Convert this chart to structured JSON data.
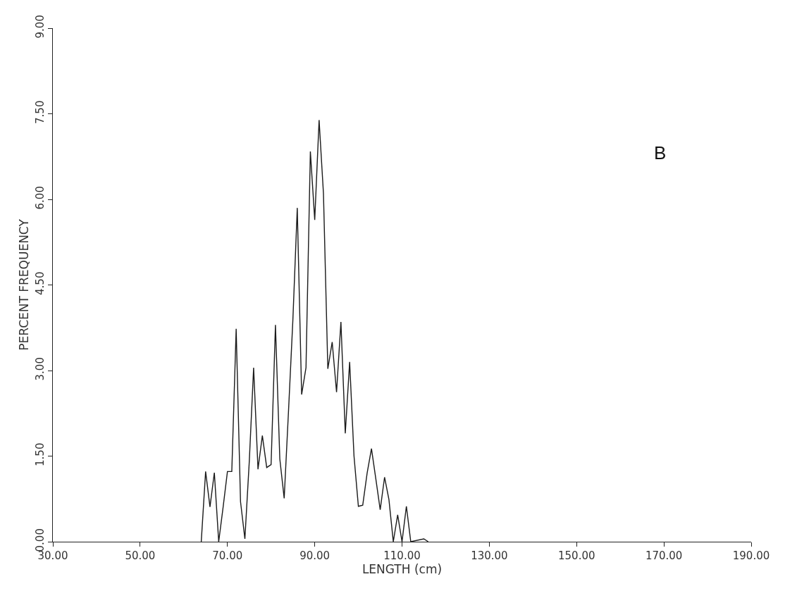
{
  "chart_data": {
    "type": "line",
    "xlabel": "LENGTH (cm)",
    "ylabel": "PERCENT FREQUENCY",
    "annotations": [
      "B"
    ],
    "x": [
      64,
      65,
      66,
      67,
      68,
      69,
      70,
      71,
      72,
      73,
      74,
      75,
      76,
      77,
      78,
      79,
      80,
      81,
      82,
      83,
      84,
      85,
      86,
      87,
      88,
      89,
      90,
      91,
      92,
      93,
      94,
      95,
      96,
      97,
      98,
      99,
      100,
      101,
      102,
      103,
      104,
      105,
      106,
      107,
      108,
      109,
      110,
      111,
      112,
      115,
      116
    ],
    "series": [
      {
        "color": "#1a1a1a",
        "values": [
          0,
          1.23,
          0.61,
          1.21,
          0,
          0.6,
          1.23,
          1.23,
          3.73,
          0.7,
          0.05,
          1.4,
          3.05,
          1.27,
          1.86,
          1.3,
          1.35,
          3.8,
          1.45,
          0.76,
          2.3,
          3.9,
          5.85,
          2.58,
          3.05,
          6.84,
          5.64,
          7.39,
          6.1,
          3.03,
          3.5,
          2.62,
          3.85,
          1.9,
          3.15,
          1.5,
          0.62,
          0.64,
          1.2,
          1.63,
          1.1,
          0.56,
          1.13,
          0.74,
          0,
          0.47,
          0,
          0.62,
          0,
          0.05,
          0
        ]
      }
    ],
    "xlim": [
      30,
      190
    ],
    "xticks": [
      {
        "value": 30,
        "label": "30.00"
      },
      {
        "value": 50,
        "label": "50.00"
      },
      {
        "value": 70,
        "label": "70.00"
      },
      {
        "value": 90,
        "label": "90.00"
      },
      {
        "value": 110,
        "label": "110.00"
      },
      {
        "value": 130,
        "label": "130.00"
      },
      {
        "value": 150,
        "label": "150.00"
      },
      {
        "value": 170,
        "label": "170.00"
      },
      {
        "value": 190,
        "label": "190.00"
      }
    ],
    "ylim": [
      0,
      9
    ],
    "yticks": [
      {
        "value": 0,
        "label": "0.00"
      },
      {
        "value": 1.5,
        "label": "1.50"
      },
      {
        "value": 3,
        "label": "3.00"
      },
      {
        "value": 4.5,
        "label": "4.50"
      },
      {
        "value": 6,
        "label": "6.00"
      },
      {
        "value": 7.5,
        "label": "7.50"
      },
      {
        "value": 9,
        "label": "9.00"
      }
    ],
    "marker": "none",
    "line_style": "solid"
  }
}
